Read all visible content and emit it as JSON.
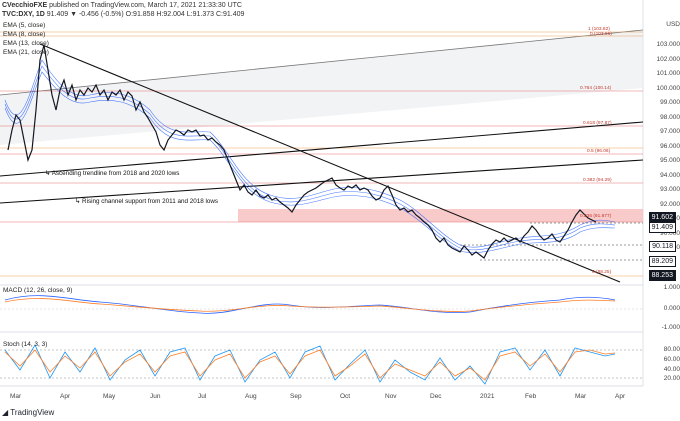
{
  "header": {
    "publisher": "CVecchioFXE",
    "published_text": "published on TradingView.com, March 17, 2021 21:33:30 UTC",
    "symbol": "TVC:DXY, 1D",
    "ohlc": "91.409 ▼ -0.456 (-0.5%) O:91.858 H:92.004 L:91.373 C:91.409"
  },
  "legend": {
    "ema5": "EMA (5, close)",
    "ema8": "EMA (8, close)",
    "ema13": "EMA (13, close)",
    "ema21": "EMA (21, close)"
  },
  "currency_label": "USD",
  "price_axis": [
    "103.000",
    "102.000",
    "101.000",
    "100.000",
    "99.000",
    "98.000",
    "97.000",
    "96.000",
    "95.000",
    "94.000",
    "93.000",
    "92.000",
    "91.000",
    "90.000",
    "89.000"
  ],
  "price_labels": [
    {
      "text": "91.602",
      "bg": "#131722",
      "fg": "#ffffff"
    },
    {
      "text": "91.409",
      "bg": "#ffffff",
      "fg": "#131722"
    },
    {
      "text": "90.118",
      "bg": "#ffffff",
      "fg": "#131722"
    },
    {
      "text": "89.209",
      "bg": "#ffffff",
      "fg": "#131722"
    },
    {
      "text": "88.253",
      "bg": "#131722",
      "fg": "#ffffff"
    }
  ],
  "fib_labels": [
    "1 (103.82)",
    "0 (103.66)",
    "0.764 (100.14)",
    "0.618 (97.87)",
    "0.5 (96.06)",
    "0.382 (94.29)",
    "0.236 (91.877)",
    "0 (88.25)"
  ],
  "annotations": {
    "ascending": "Ascending trendline from 2018 and 2020 lows",
    "rising": "Rising channel support from 2011 and 2018 lows"
  },
  "macd": {
    "label": "MACD (12, 26, close, 9)",
    "axis": [
      "1.000",
      "0.000",
      "-1.000"
    ]
  },
  "stoch": {
    "label": "Stoch (14, 3, 3)",
    "axis": [
      "80.00",
      "60.00",
      "40.00",
      "20.00"
    ]
  },
  "x_axis": [
    "Mar",
    "Apr",
    "May",
    "Jun",
    "Jul",
    "Aug",
    "Sep",
    "Oct",
    "Nov",
    "Dec",
    "2021",
    "Feb",
    "Mar",
    "Apr"
  ],
  "branding": "TradingView",
  "colors": {
    "up": "#131722",
    "ema": "#2962ff",
    "fib": "#e57373",
    "zone": "#f7c5c5",
    "stoch_k": "#2196f3",
    "stoch_d": "#ff7f27"
  }
}
